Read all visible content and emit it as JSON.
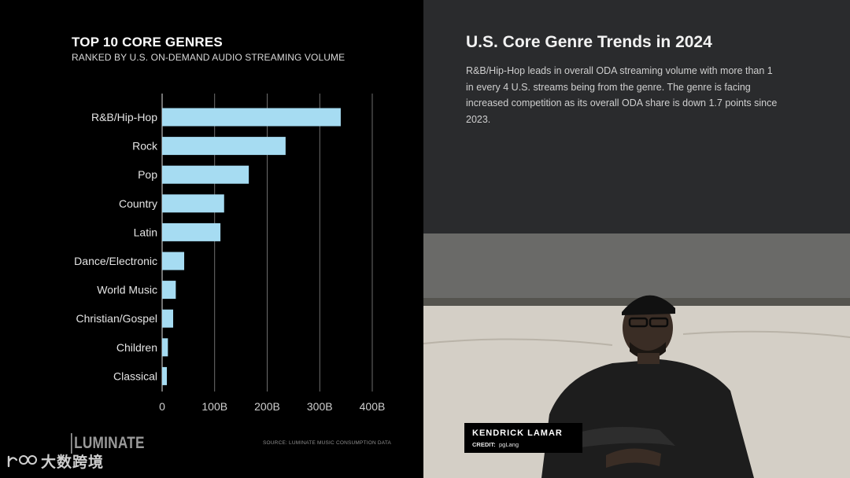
{
  "left_panel": {
    "title": "TOP 10 CORE GENRES",
    "subtitle": "RANKED BY U.S. ON-DEMAND AUDIO STREAMING VOLUME",
    "brand": "LUMINATE",
    "source": "SOURCE: LUMINATE MUSIC CONSUMPTION DATA"
  },
  "chart_data": {
    "type": "bar",
    "orientation": "horizontal",
    "title": "TOP 10 CORE GENRES",
    "subtitle": "RANKED BY U.S. ON-DEMAND AUDIO STREAMING VOLUME",
    "categories": [
      "R&B/Hip-Hop",
      "Rock",
      "Pop",
      "Country",
      "Latin",
      "Dance/Electronic",
      "World Music",
      "Christian/Gospel",
      "Children",
      "Classical"
    ],
    "values": [
      340,
      235,
      165,
      118,
      111,
      42,
      26,
      21,
      11,
      9
    ],
    "value_unit": "B",
    "xlim": [
      0,
      400
    ],
    "x_ticks": [
      0,
      100,
      200,
      300,
      400
    ],
    "x_tick_labels": [
      "0",
      "100B",
      "200B",
      "300B",
      "400B"
    ],
    "grid": true,
    "bar_color": "#a6dcf2"
  },
  "right_panel": {
    "title": "U.S. Core Genre Trends in 2024",
    "body": "R&B/Hip-Hop leads in overall ODA streaming volume with more than 1 in every 4 U.S. streams being from the genre. The genre is facing increased competition as its overall ODA share is down 1.7 points since 2023.",
    "caption": {
      "name": "KENDRICK LAMAR",
      "credit_label": "CREDIT:",
      "credit_value": "pgLang"
    }
  },
  "watermark": {
    "text": "大数跨境",
    "icon": "watermark-logo-icon"
  },
  "colors": {
    "left_bg": "#000000",
    "right_bg": "#2a2b2d",
    "grid": "#8a8a8a"
  }
}
